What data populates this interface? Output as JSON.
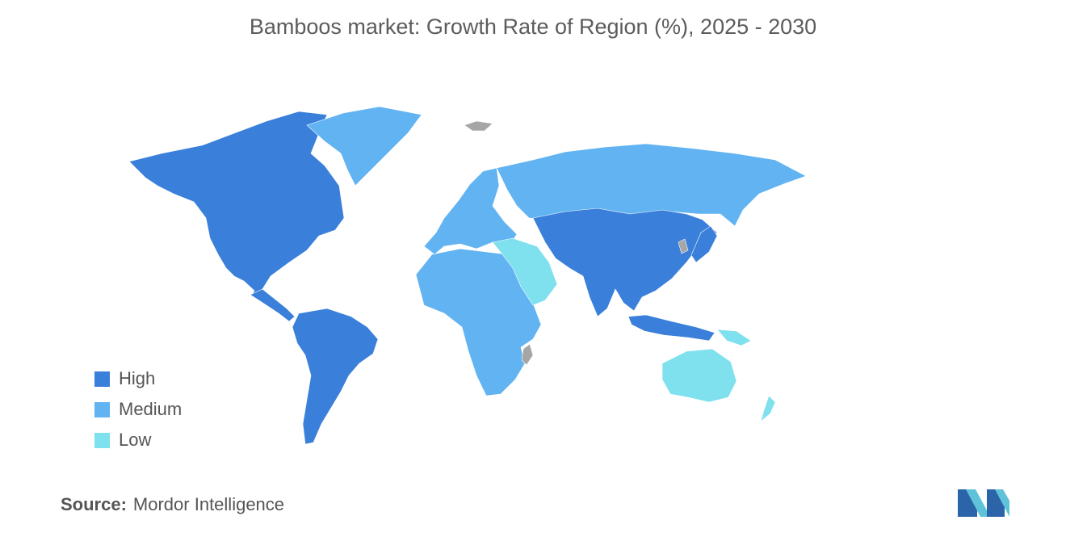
{
  "title": "Bamboos market: Growth Rate of Region (%), 2025 - 2030",
  "legend": {
    "items": [
      {
        "label": "High",
        "color": "#3a7fd9"
      },
      {
        "label": "Medium",
        "color": "#62b3f2"
      },
      {
        "label": "Low",
        "color": "#7fe0ee"
      }
    ]
  },
  "no_data_color": "#a6a6a6",
  "regions": {
    "north_america": "High",
    "south_america": "High",
    "asia_pacific": "High",
    "greenland": "Medium",
    "europe": "Medium",
    "russia": "Medium",
    "africa": "Medium",
    "middle_east": "Low",
    "australia_new_zealand": "Low"
  },
  "source": {
    "label": "Source:",
    "value": "Mordor Intelligence"
  },
  "logo": {
    "icon": "mordor-intelligence-logo"
  }
}
